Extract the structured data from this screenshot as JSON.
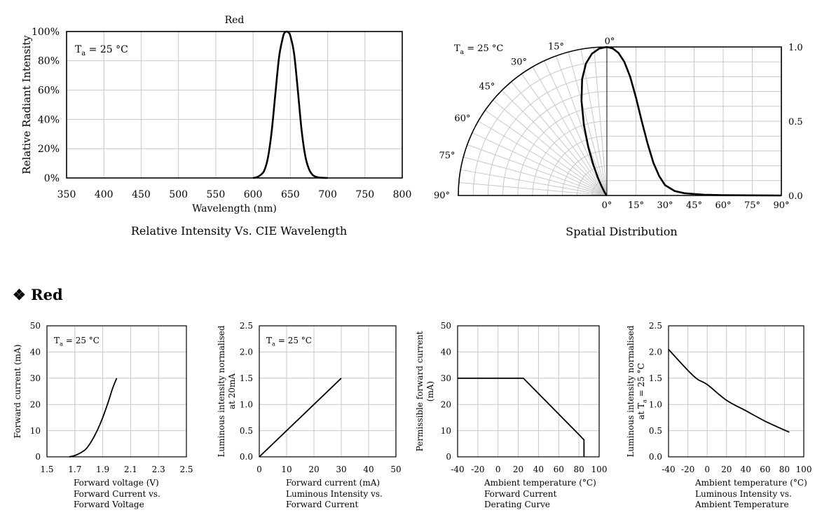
{
  "section_heading": {
    "bullet": "❖",
    "text": "Red"
  },
  "chart_data": [
    {
      "type": "line",
      "title": "Red",
      "caption": "Relative Intensity Vs. CIE Wavelength",
      "annotation": "Ta = 25 °C",
      "xlabel": "Wavelength (nm)",
      "ylabel": "Relative  Radiant Intensity",
      "xlim": [
        350,
        800
      ],
      "ylim": [
        0,
        100
      ],
      "xticks": [
        "350",
        "400",
        "450",
        "500",
        "550",
        "600",
        "650",
        "700",
        "750",
        "800"
      ],
      "yticks": [
        "0%",
        "20%",
        "40%",
        "60%",
        "80%",
        "100%"
      ],
      "grid": true,
      "series": [
        {
          "x": [
            600,
            605,
            610,
            615,
            620,
            625,
            630,
            635,
            640,
            642,
            645,
            648,
            650,
            655,
            660,
            665,
            670,
            675,
            680,
            685,
            690,
            700
          ],
          "y": [
            0,
            0.5,
            2,
            5,
            14,
            32,
            58,
            83,
            96,
            99,
            100,
            99,
            97,
            85,
            60,
            33,
            15,
            6,
            2,
            0.7,
            0.2,
            0
          ]
        }
      ]
    },
    {
      "type": "polar",
      "caption": "Spatial Distribution",
      "annotation": "Ta = 25 °C",
      "angle_labels": [
        "0°",
        "15°",
        "30°",
        "45°",
        "60°",
        "75°",
        "90°"
      ],
      "bottom_labels": [
        "0°",
        "15°",
        "30°",
        "45°",
        "60°",
        "75°",
        "90°"
      ],
      "right_labels": [
        "1.0",
        "0.5",
        "0.0"
      ],
      "series": [
        {
          "angle": [
            0,
            3,
            6,
            9,
            12,
            15,
            18,
            21,
            24,
            27,
            30,
            35,
            40,
            50,
            60,
            75,
            90
          ],
          "value": [
            1.0,
            0.99,
            0.96,
            0.9,
            0.8,
            0.66,
            0.5,
            0.35,
            0.22,
            0.13,
            0.07,
            0.03,
            0.015,
            0.005,
            0.002,
            0.001,
            0
          ]
        }
      ]
    },
    {
      "type": "line",
      "caption_lines": [
        "Forward Current vs.",
        "Forward Voltage"
      ],
      "annotation": "Ta = 25 °C",
      "xlabel": "Forward voltage (V)",
      "ylabel": "Forward current (mA)",
      "xlim": [
        1.5,
        2.5
      ],
      "ylim": [
        0,
        50
      ],
      "xticks": [
        "1.5",
        "1.7",
        "1.9",
        "2.1",
        "2.3",
        "2.5"
      ],
      "yticks": [
        "0",
        "10",
        "20",
        "30",
        "40",
        "50"
      ],
      "grid": true,
      "series": [
        {
          "x": [
            1.66,
            1.7,
            1.74,
            1.78,
            1.82,
            1.86,
            1.9,
            1.94,
            1.97,
            2.0
          ],
          "y": [
            0,
            0.5,
            1.5,
            3,
            6,
            10,
            15,
            21,
            26,
            30
          ]
        }
      ]
    },
    {
      "type": "line",
      "caption_lines": [
        "Luminous Intensity vs.",
        "Forward Current"
      ],
      "annotation": "Ta = 25 °C",
      "xlabel": "Forward current (mA)",
      "ylabel_lines": [
        "Luminous intensity normalised",
        "at 20mA"
      ],
      "xlim": [
        0,
        50
      ],
      "ylim": [
        0,
        2.5
      ],
      "xticks": [
        "0",
        "10",
        "20",
        "30",
        "40",
        "50"
      ],
      "yticks": [
        "0.0",
        "0.5",
        "1.0",
        "1.5",
        "2.0",
        "2.5"
      ],
      "grid": true,
      "series": [
        {
          "x": [
            0,
            30
          ],
          "y": [
            0,
            1.5
          ]
        }
      ]
    },
    {
      "type": "line",
      "caption_lines": [
        "Forward Current",
        "Derating  Curve"
      ],
      "xlabel": "Ambient temperature (°C)",
      "ylabel_lines": [
        "Permissible forward current",
        "(mA)"
      ],
      "xlim": [
        -40,
        100
      ],
      "ylim": [
        0,
        50
      ],
      "xticks": [
        "-40",
        "-20",
        "0",
        "20",
        "40",
        "60",
        "80",
        "100"
      ],
      "yticks": [
        "0",
        "10",
        "20",
        "30",
        "40",
        "50"
      ],
      "grid": true,
      "series": [
        {
          "x": [
            -40,
            25,
            80,
            85,
            85
          ],
          "y": [
            30,
            30,
            8.5,
            6.5,
            0
          ]
        }
      ]
    },
    {
      "type": "line",
      "caption_lines": [
        "Luminous Intensity vs.",
        "Ambient Temperature"
      ],
      "xlabel": "Ambient temperature (°C)",
      "ylabel_lines": [
        "Luminous intensity normalised",
        "at Ta = 25 °C"
      ],
      "xlim": [
        -40,
        100
      ],
      "ylim": [
        0,
        2.5
      ],
      "xticks": [
        "-40",
        "-20",
        "0",
        "20",
        "40",
        "60",
        "80",
        "100"
      ],
      "yticks": [
        "0.0",
        "0.5",
        "1.0",
        "1.5",
        "2.0",
        "2.5"
      ],
      "grid": true,
      "series": [
        {
          "x": [
            -40,
            -20,
            -10,
            0,
            20,
            40,
            60,
            85
          ],
          "y": [
            2.05,
            1.65,
            1.48,
            1.38,
            1.08,
            0.88,
            0.68,
            0.47
          ]
        }
      ]
    }
  ]
}
